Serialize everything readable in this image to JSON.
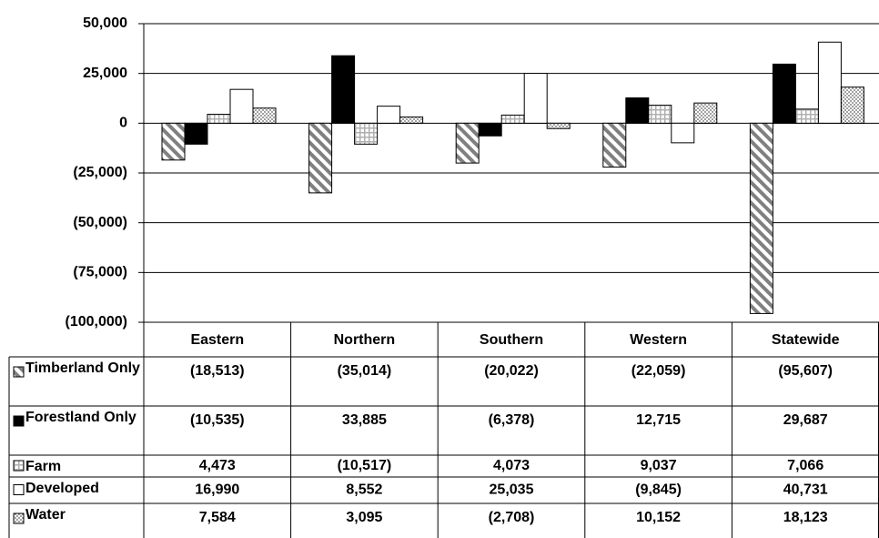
{
  "chart_data": {
    "type": "bar",
    "categories": [
      "Eastern",
      "Northern",
      "Southern",
      "Western",
      "Statewide"
    ],
    "series": [
      {
        "name": "Timberland Only",
        "color": "#808080",
        "pattern": "diagonal",
        "values": [
          -18513,
          -35014,
          -20022,
          -22059,
          -95607
        ],
        "value_labels": [
          "(18,513)",
          "(35,014)",
          "(20,022)",
          "(22,059)",
          "(95,607)"
        ]
      },
      {
        "name": "Forestland Only",
        "color": "#000000",
        "pattern": "solid",
        "values": [
          -10535,
          33885,
          -6378,
          12715,
          29687
        ],
        "value_labels": [
          "(10,535)",
          "33,885",
          "(6,378)",
          "12,715",
          "29,687"
        ]
      },
      {
        "name": "Farm",
        "color": "#b0b0b0",
        "pattern": "grid",
        "values": [
          4473,
          -10517,
          4073,
          9037,
          7066
        ],
        "value_labels": [
          "4,473",
          "(10,517)",
          "4,073",
          "9,037",
          "7,066"
        ]
      },
      {
        "name": "Developed",
        "color": "#ffffff",
        "pattern": "solid",
        "values": [
          16990,
          8552,
          25035,
          -9845,
          40731
        ],
        "value_labels": [
          "16,990",
          "8,552",
          "25,035",
          "(9,845)",
          "40,731"
        ]
      },
      {
        "name": "Water",
        "color": "#808080",
        "pattern": "dots",
        "values": [
          7584,
          3095,
          -2708,
          10152,
          18123
        ],
        "value_labels": [
          "7,584",
          "3,095",
          "(2,708)",
          "10,152",
          "18,123"
        ]
      }
    ],
    "ylim": [
      -100000,
      50000
    ],
    "yticks": [
      {
        "value": -100000,
        "label": "(100,000)"
      },
      {
        "value": -75000,
        "label": "(75,000)"
      },
      {
        "value": -50000,
        "label": "(50,000)"
      },
      {
        "value": -25000,
        "label": "(25,000)"
      },
      0,
      {
        "value": 25000,
        "label": "25,000"
      },
      {
        "value": 50000,
        "label": "50,000"
      }
    ],
    "grid": true
  }
}
